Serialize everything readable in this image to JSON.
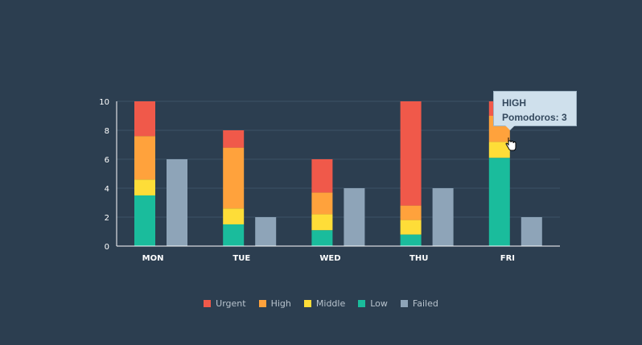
{
  "chart_data": {
    "type": "bar",
    "stacked": true,
    "categories": [
      "MON",
      "TUE",
      "WED",
      "THU",
      "FRI"
    ],
    "series": [
      {
        "name": "Low",
        "stack": "done",
        "values": [
          3.5,
          1.5,
          1.1,
          0.8,
          6.1
        ]
      },
      {
        "name": "Middle",
        "stack": "done",
        "values": [
          1.1,
          1.1,
          1.1,
          1.0,
          1.1
        ]
      },
      {
        "name": "High",
        "stack": "done",
        "values": [
          3.0,
          4.2,
          1.5,
          1.0,
          1.8
        ]
      },
      {
        "name": "Urgent",
        "stack": "done",
        "values": [
          2.4,
          1.2,
          2.3,
          7.2,
          1.0
        ]
      },
      {
        "name": "Failed",
        "stack": "failed",
        "values": [
          6,
          2,
          4,
          4,
          2
        ]
      }
    ],
    "ylim": [
      0,
      10
    ],
    "yticks": [
      0,
      2,
      4,
      6,
      8,
      10
    ],
    "grid": true,
    "legend_position": "bottom"
  },
  "legend": [
    {
      "label": "Urgent",
      "color": "#f0594a"
    },
    {
      "label": "High",
      "color": "#ffa23c"
    },
    {
      "label": "Middle",
      "color": "#fedd38"
    },
    {
      "label": "Low",
      "color": "#1abc9c"
    },
    {
      "label": "Failed",
      "color": "#8ea4b8"
    }
  ],
  "tooltip": {
    "title": "HIGH",
    "value_text": "Pomodoros: 3"
  },
  "colors": {
    "background": "#2c3e50",
    "grid": "#3d5266",
    "axis": "#ffffff",
    "Urgent": "#f0594a",
    "High": "#ffa23c",
    "Middle": "#fedd38",
    "Low": "#1abc9c",
    "Failed": "#8ea4b8"
  }
}
